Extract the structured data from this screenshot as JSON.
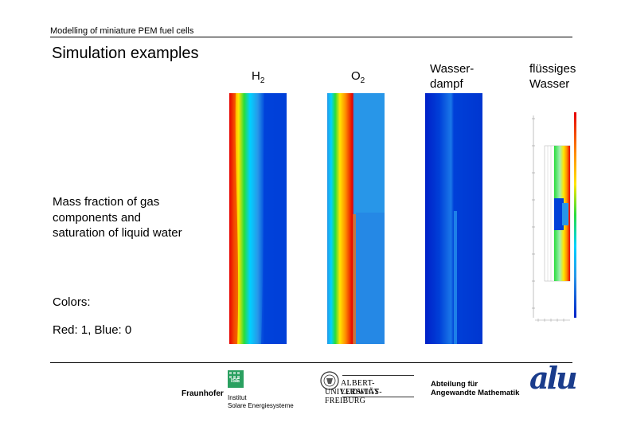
{
  "header": {
    "text": "Modelling of miniature PEM fuel cells"
  },
  "title": "Simulation examples",
  "columns": [
    {
      "label": "H",
      "sub": "2"
    },
    {
      "label": "O",
      "sub": "2"
    },
    {
      "label": "Wasser-\ndampf"
    },
    {
      "label": "flüssiges\nWasser"
    }
  ],
  "description": "Mass fraction of gas components and saturation of liquid water",
  "colors_label": "Colors:",
  "colors_scale": "Red: 1, Blue: 0",
  "logos": {
    "fraunhofer": "Fraunhofer",
    "fraunhofer_badge": "ISE",
    "institut_line1": "Institut",
    "institut_line2": "Solare Energiesysteme",
    "freiburg_line1": "ALBERT-LUDWIGS-",
    "freiburg_line2": "UNIVERSITÄT FREIBURG",
    "math_line1": "Abteilung für",
    "math_line2": "Angewandte Mathematik",
    "alu": "alu"
  },
  "palette": {
    "red": "#e60000",
    "orange": "#ff8c00",
    "yellow": "#ffe600",
    "green": "#28dc3c",
    "cyan": "#00d2ff",
    "light_blue": "#2896e8",
    "blue": "#0046dc",
    "deep_blue": "#0020c8"
  }
}
